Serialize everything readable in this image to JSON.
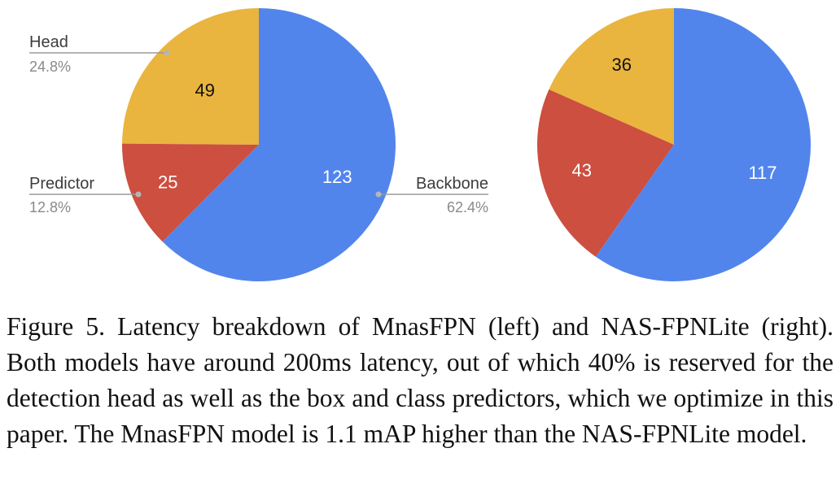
{
  "chart_data": [
    {
      "type": "pie",
      "title": "",
      "categories": [
        "Head",
        "Predictor",
        "Backbone"
      ],
      "values": [
        49,
        25,
        123
      ],
      "value_labels": [
        "49",
        "25",
        "123"
      ],
      "legend": [
        {
          "name": "Head",
          "pct": "24.8%"
        },
        {
          "name": "Predictor",
          "pct": "12.8%"
        },
        {
          "name": "Backbone",
          "pct": "62.4%"
        }
      ],
      "colors": [
        "#E9B53E",
        "#CC4F3F",
        "#5285EC"
      ],
      "label_colors": [
        "#111111",
        "#ffffff",
        "#ffffff"
      ],
      "legend_placement": "outside-callouts"
    },
    {
      "type": "pie",
      "title": "",
      "categories": [
        "Head",
        "Predictor",
        "Backbone"
      ],
      "values": [
        36,
        43,
        117
      ],
      "value_labels": [
        "36",
        "43",
        "117"
      ],
      "colors": [
        "#E9B53E",
        "#CC4F3F",
        "#5285EC"
      ],
      "label_colors": [
        "#111111",
        "#ffffff",
        "#ffffff"
      ]
    }
  ],
  "caption": "Figure 5. Latency breakdown of MnasFPN (left) and NAS-FPNLite (right). Both models have around 200ms latency, out of which 40% is reserved for the detection head as well as the box and class predictors, which we optimize in this paper. The MnasFPN model is 1.1 mAP higher than the NAS-FPNLite model."
}
